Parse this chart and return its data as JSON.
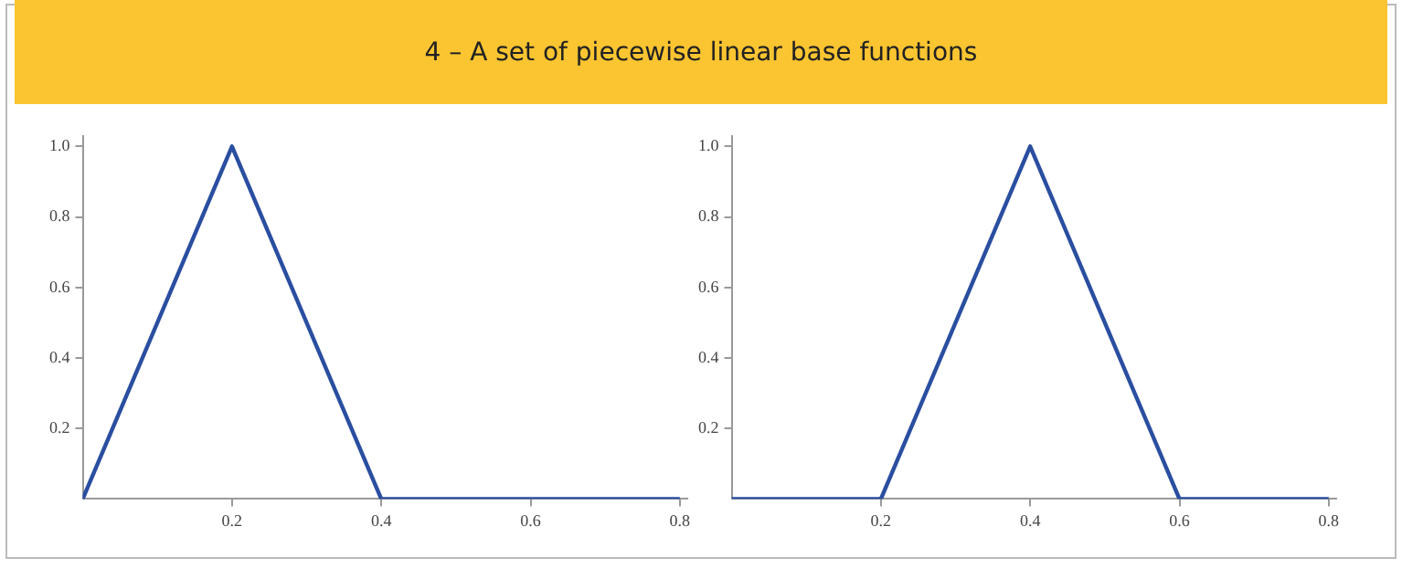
{
  "chart_data": [
    {
      "type": "line",
      "title": "4 – A set of piecewise linear base functions",
      "x": [
        0,
        0.2,
        0.4,
        0.8
      ],
      "values": [
        0,
        1,
        0,
        0
      ],
      "color": "#2a4ea0",
      "marker": "none",
      "line_style": "solid",
      "xlim": [
        0,
        0.81
      ],
      "ylim": [
        0,
        1.03
      ],
      "xticks": [
        0.2,
        0.4,
        0.6,
        0.8
      ],
      "yticks": [
        0.2,
        0.4,
        0.6,
        0.8,
        {
          "value": 1,
          "label": "1.0"
        }
      ]
    },
    {
      "type": "line",
      "x": [
        0,
        0.2,
        0.4,
        0.6,
        0.8
      ],
      "values": [
        0,
        0,
        1,
        0,
        0
      ],
      "color": "#2a4ea0",
      "marker": "none",
      "line_style": "solid",
      "xlim": [
        0,
        0.81
      ],
      "ylim": [
        0,
        1.03
      ],
      "xticks": [
        0.2,
        0.4,
        0.6,
        0.8
      ],
      "yticks": [
        0.2,
        0.4,
        0.6,
        0.8,
        {
          "value": 1,
          "label": "1.0"
        }
      ]
    }
  ]
}
